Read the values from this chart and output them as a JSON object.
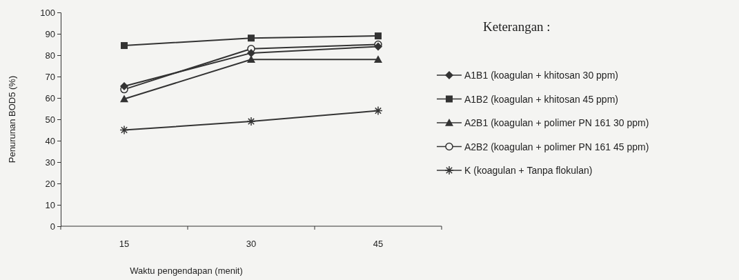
{
  "chart_data": {
    "type": "line",
    "xlabel": "Waktu pengendapan (menit)",
    "ylabel": "Penurunan BOD5 (%)",
    "legend_title": "Keterangan :",
    "legend": "right",
    "categories": [
      "15",
      "30",
      "45"
    ],
    "ylim": [
      0,
      100
    ],
    "yticks": [
      0,
      10,
      20,
      30,
      40,
      50,
      60,
      70,
      80,
      90,
      100
    ],
    "grid": false,
    "series": [
      {
        "name": "A1B1 (koagulan + khitosan 30 ppm)",
        "color": "#333333",
        "marker": "diamond",
        "values": [
          65.5,
          81,
          84
        ]
      },
      {
        "name": "A1B2 (koagulan + khitosan 45 ppm)",
        "color": "#333333",
        "marker": "square",
        "values": [
          84.5,
          88,
          89
        ]
      },
      {
        "name": "A2B1 (koagulan + polimer PN 161 30 ppm)",
        "color": "#333333",
        "marker": "triangle",
        "values": [
          59.5,
          78,
          78
        ]
      },
      {
        "name": "A2B2 (koagulan + polimer PN 161 45 ppm)",
        "color": "#333333",
        "marker": "circle",
        "values": [
          64,
          83,
          85
        ]
      },
      {
        "name": "K (koagulan + Tanpa flokulan)",
        "color": "#333333",
        "marker": "cross",
        "values": [
          45,
          49,
          54
        ]
      }
    ]
  }
}
